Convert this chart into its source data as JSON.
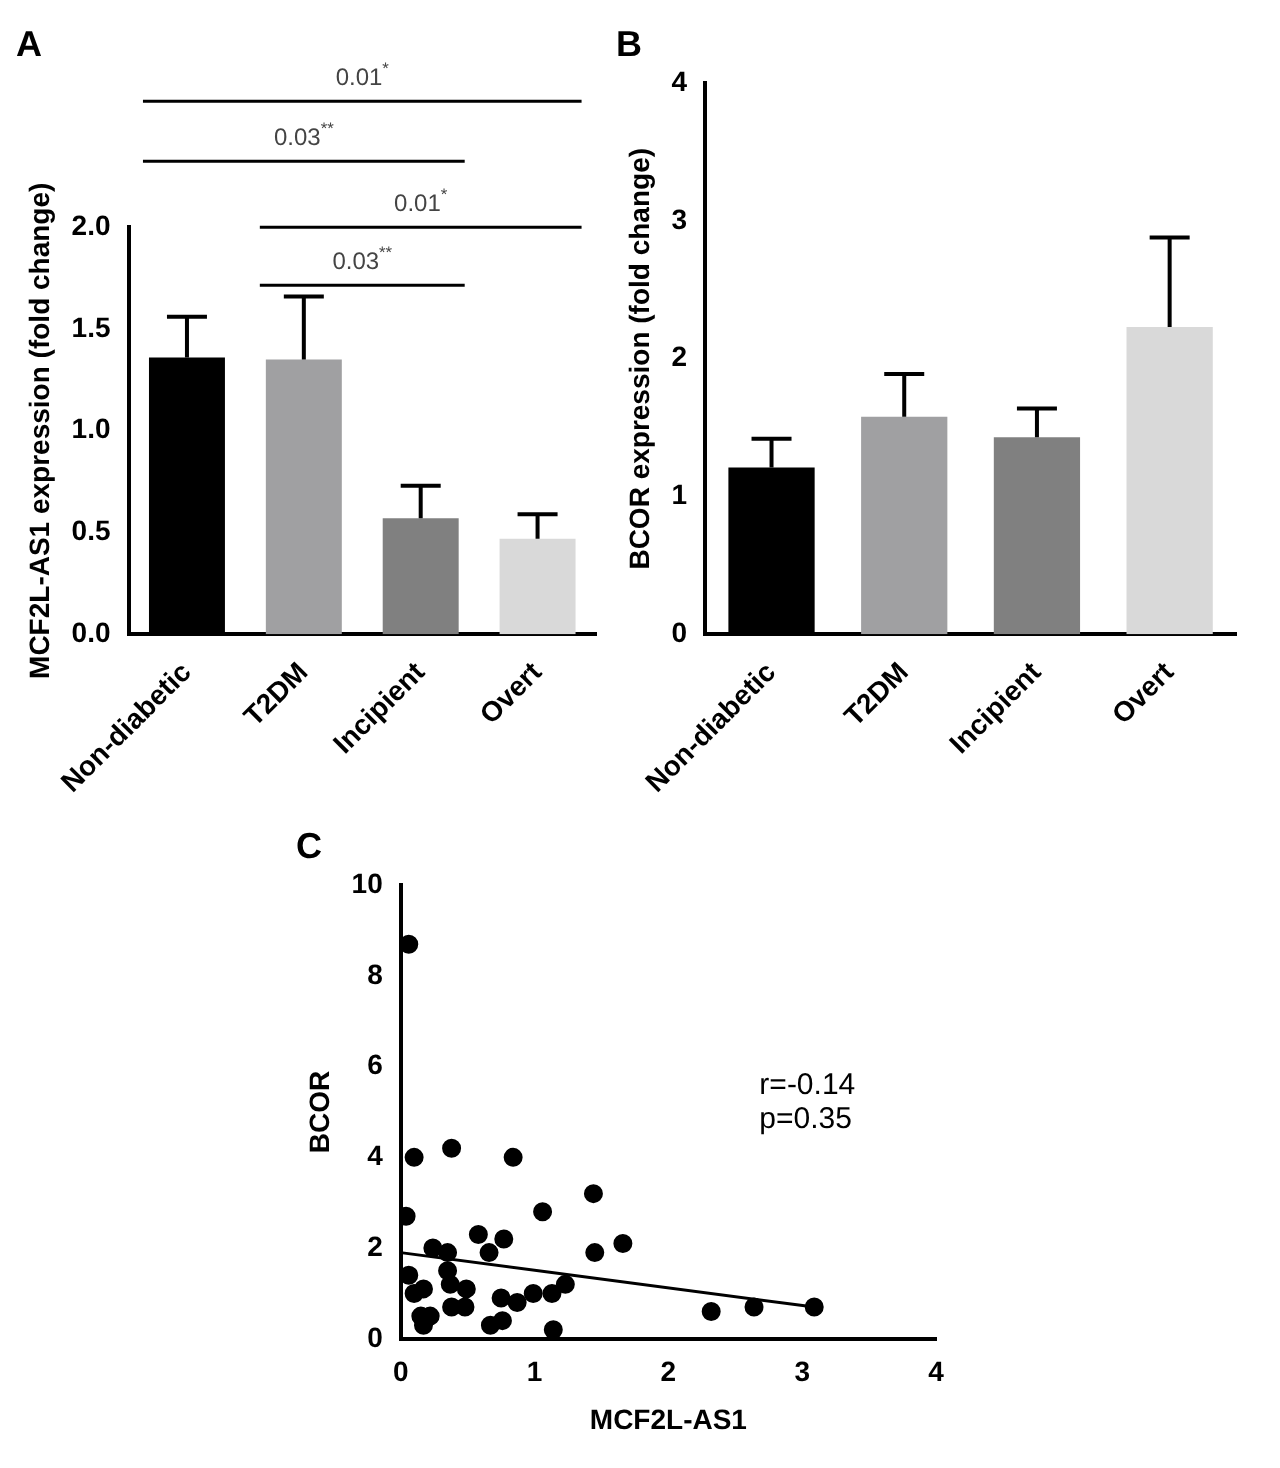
{
  "chart_data": [
    {
      "type": "bar",
      "title": "A",
      "ylabel": "MCF2L-AS1 expression (fold change)",
      "categories": [
        "Non-diabetic",
        "T2DM",
        "Incipient",
        "Overt"
      ],
      "values": [
        1.36,
        1.35,
        0.57,
        0.47
      ],
      "colors": [
        "#000000",
        "#a0a0a2",
        "#808080",
        "#d9d9d9"
      ],
      "errors": [
        [
          1.36,
          1.56
        ],
        [
          1.35,
          1.66
        ],
        [
          0.57,
          0.73
        ],
        [
          0.47,
          0.59
        ]
      ],
      "ylim": [
        0,
        2
      ],
      "yticks": [
        {
          "value": 0,
          "label": "0.0"
        },
        {
          "value": 0.5,
          "label": "0.5"
        },
        {
          "value": 1,
          "label": "1.0"
        },
        {
          "value": 1.5,
          "label": "1.5"
        },
        {
          "value": 2,
          "label": "2.0"
        }
      ],
      "annotations": [
        "0.01$^{*}$",
        "0.03$^{**}$",
        "0.01$^{*}$",
        "0.03$^{**}$"
      ]
    },
    {
      "type": "bar",
      "title": "B",
      "ylabel": "BCOR expression (fold change)",
      "categories": [
        "Non-diabetic",
        "T2DM",
        "Incipient",
        "Overt"
      ],
      "values": [
        1.21,
        1.58,
        1.43,
        2.23
      ],
      "colors": [
        "#000000",
        "#a0a0a2",
        "#808080",
        "#d9d9d9"
      ],
      "errors": [
        [
          1.21,
          1.42
        ],
        [
          1.58,
          1.89
        ],
        [
          1.43,
          1.64
        ],
        [
          2.23,
          2.88
        ]
      ],
      "ylim": [
        0,
        4
      ],
      "yticks": [
        0,
        1,
        2,
        3,
        4
      ]
    },
    {
      "type": "scatter",
      "title": "C",
      "xlabel": "MCF2L-AS1",
      "ylabel": "BCOR",
      "marker": "circle",
      "xlim": [
        0,
        4
      ],
      "xticks": [
        0,
        1,
        2,
        3,
        4
      ],
      "ylim": [
        0,
        10
      ],
      "yticks": [
        0,
        2,
        4,
        6,
        8,
        10
      ],
      "annotations": [
        "r=-0.14",
        "p=0.35"
      ],
      "series": [
        {
          "color": "#000000",
          "x": [
            0.06,
            0.1,
            0.38,
            0.84,
            0.04,
            1.44,
            1.06,
            0.58,
            0.77,
            0.66,
            0.24,
            0.35,
            1.45,
            1.66,
            0.06,
            0.17,
            0.1,
            0.35,
            0.37,
            0.49,
            0.48,
            0.38,
            0.15,
            0.22,
            0.17,
            0.67,
            0.76,
            0.75,
            0.87,
            0.99,
            1.13,
            1.23,
            1.14,
            2.32,
            2.64,
            3.09
          ],
          "values": [
            8.7,
            4.0,
            4.2,
            4.0,
            2.7,
            3.2,
            2.8,
            2.3,
            2.2,
            1.9,
            2.0,
            1.9,
            1.9,
            2.1,
            1.4,
            1.1,
            1.0,
            1.5,
            1.2,
            1.1,
            0.7,
            0.7,
            0.5,
            0.5,
            0.3,
            0.3,
            0.4,
            0.9,
            0.8,
            1.0,
            1.0,
            1.2,
            0.2,
            0.6,
            0.7,
            0.7
          ]
        },
        {
          "type": "line",
          "color": "#000000",
          "marker": "none",
          "x": [
            0,
            3.09
          ],
          "values": [
            1.9,
            0.7
          ]
        }
      ]
    }
  ]
}
